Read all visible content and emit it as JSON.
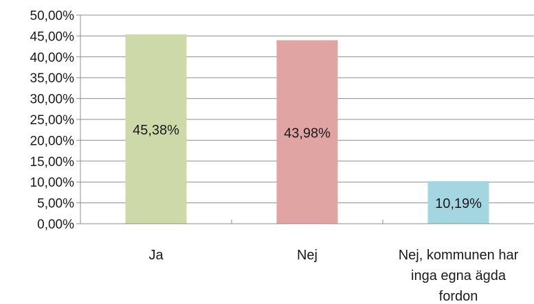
{
  "chart_data": {
    "type": "bar",
    "categories": [
      [
        "Ja"
      ],
      [
        "Nej"
      ],
      [
        "Nej, kommunen har",
        "inga egna ägda",
        "fordon"
      ]
    ],
    "values": [
      45.38,
      43.98,
      10.19
    ],
    "data_labels": [
      "45,38%",
      "43,98%",
      "10,19%"
    ],
    "colors": [
      "#cdd9a8",
      "#e0a5a3",
      "#a3d6e1"
    ],
    "ylim": [
      0,
      50
    ],
    "ytick_step": 5,
    "ytick_labels": [
      "0,00%",
      "5,00%",
      "10,00%",
      "15,00%",
      "20,00%",
      "25,00%",
      "30,00%",
      "35,00%",
      "40,00%",
      "45,00%",
      "50,00%"
    ],
    "grid": true,
    "legend": "none"
  }
}
